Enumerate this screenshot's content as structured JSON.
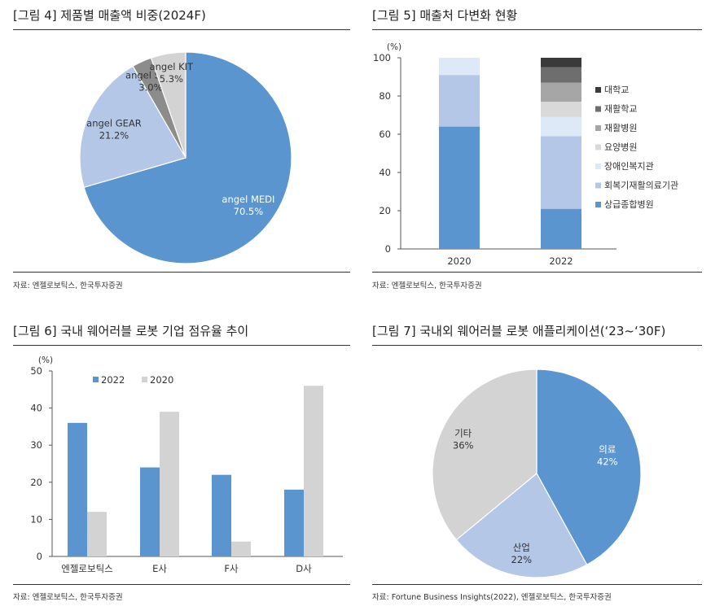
{
  "panels": {
    "p1": {
      "title": "[그림 4] 제품별 매출액 비중(2024F)",
      "source": "자료: 엔젤로보틱스, 한국투자증권"
    },
    "p2": {
      "title": "[그림 5] 매출처 다변화 현황",
      "source": "자료: 엔젤로보틱스, 한국투자증권"
    },
    "p3": {
      "title": "[그림 6] 국내 웨어러블 로봇 기업 점유율 추이",
      "source": "자료: 엔젤로보틱스, 한국투자증권"
    },
    "p4": {
      "title": "[그림 7] 국내외 웨어러블 로봇 애플리케이션(‘23~‘30F)",
      "source": "자료: Fortune Business Insights(2022), 엔젤로보틱스, 한국투자증권"
    }
  },
  "chart_data": [
    {
      "type": "pie",
      "labels": [
        "angel MEDI",
        "angel GEAR",
        "angel SUIT",
        "angel KIT"
      ],
      "values": [
        70.5,
        21.2,
        3.0,
        5.3
      ],
      "value_labels": [
        "70.5%",
        "21.2%",
        "3.0%",
        "5.3%"
      ],
      "colors": [
        "#5b95cf",
        "#b4c7e7",
        "#8c8c8c",
        "#d3d3d3"
      ],
      "start": "12 o'clock",
      "direction": "clockwise"
    },
    {
      "type": "bar",
      "stacked": true,
      "categories": [
        "2020",
        "2022"
      ],
      "unit": "(%)",
      "ylim": [
        0,
        100
      ],
      "yticks": [
        "0",
        "20",
        "40",
        "60",
        "80",
        "100"
      ],
      "series": [
        {
          "name": "상급종합병원",
          "values": [
            64,
            21
          ],
          "color": "#5b95cf"
        },
        {
          "name": "회복기재활의료기관",
          "values": [
            27,
            38
          ],
          "color": "#b4c7e7"
        },
        {
          "name": "장애인복지관",
          "values": [
            9,
            10
          ],
          "color": "#dee9f7"
        },
        {
          "name": "요양병원",
          "values": [
            0,
            8
          ],
          "color": "#d9d9d9"
        },
        {
          "name": "재활병원",
          "values": [
            0,
            10
          ],
          "color": "#a6a6a6"
        },
        {
          "name": "재활학교",
          "values": [
            0,
            8
          ],
          "color": "#6e6e6e"
        },
        {
          "name": "대학교",
          "values": [
            0,
            5
          ],
          "color": "#3a3a3a"
        }
      ],
      "legend_order": [
        "대학교",
        "재활학교",
        "재활병원",
        "요양병원",
        "장애인복지관",
        "회복기재활의료기관",
        "상급종합병원"
      ],
      "legend": "right"
    },
    {
      "type": "bar",
      "categories": [
        "엔젤로보틱스",
        "E사",
        "F사",
        "D사"
      ],
      "unit": "(%)",
      "ylim": [
        0,
        50
      ],
      "yticks": [
        "0",
        "10",
        "20",
        "30",
        "40",
        "50"
      ],
      "series": [
        {
          "name": "2022",
          "values": [
            36,
            24,
            22,
            18
          ],
          "color": "#5b95cf"
        },
        {
          "name": "2020",
          "values": [
            12,
            39,
            4,
            46
          ],
          "color": "#d3d3d3"
        }
      ],
      "legend": "top-left"
    },
    {
      "type": "pie",
      "labels": [
        "의료",
        "산업",
        "기타"
      ],
      "values": [
        42,
        22,
        36
      ],
      "value_labels": [
        "42%",
        "22%",
        "36%"
      ],
      "colors": [
        "#5b95cf",
        "#b4c7e7",
        "#d3d3d3"
      ],
      "start": "12 o'clock",
      "direction": "clockwise"
    }
  ]
}
